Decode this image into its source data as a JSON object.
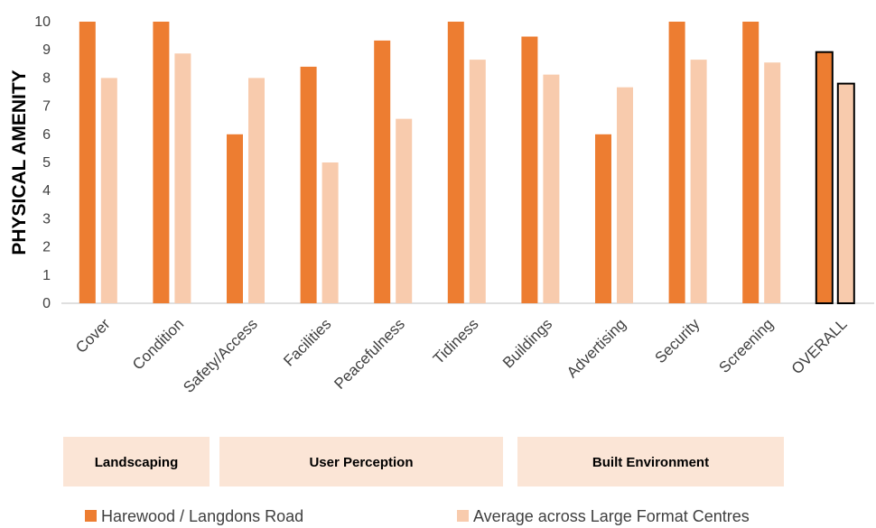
{
  "chart_data": {
    "type": "bar",
    "ylabel": "PHYSICAL AMENITY",
    "xlabel": "",
    "ylim": [
      0,
      10
    ],
    "yticks": [
      "0",
      "1",
      "2",
      "3",
      "4",
      "5",
      "6",
      "7",
      "8",
      "9",
      "10"
    ],
    "grid": false,
    "legend_position": "bottom",
    "categories": [
      "Cover",
      "Condition",
      "Safety/Access",
      "Facilities",
      "Peacefulness",
      "Tidiness",
      "Buildings",
      "Advertising",
      "Security",
      "Screening",
      "OVERALL"
    ],
    "series": [
      {
        "name": "Harewood / Langdons Road",
        "color": "#ED7D31",
        "values": [
          10,
          10,
          6,
          8.4,
          9.33,
          10,
          9.47,
          6,
          10,
          10,
          8.92
        ]
      },
      {
        "name": "Average across Large Format Centres",
        "color": "#F8CBAD",
        "values": [
          8,
          8.87,
          8,
          5,
          6.55,
          8.65,
          8.12,
          7.67,
          8.65,
          8.55,
          7.8
        ]
      }
    ],
    "highlighted_category": "OVERALL",
    "highlight_outline_color": "#000000",
    "groups": [
      {
        "label": "Landscaping",
        "categories": [
          "Cover",
          "Condition"
        ]
      },
      {
        "label": "User Perception",
        "categories": [
          "Safety/Access",
          "Facilities",
          "Peacefulness",
          "Tidiness"
        ]
      },
      {
        "label": "Built Environment",
        "categories": [
          "Buildings",
          "Advertising",
          "Security"
        ]
      }
    ],
    "group_box_color": "#FBE5D6"
  }
}
